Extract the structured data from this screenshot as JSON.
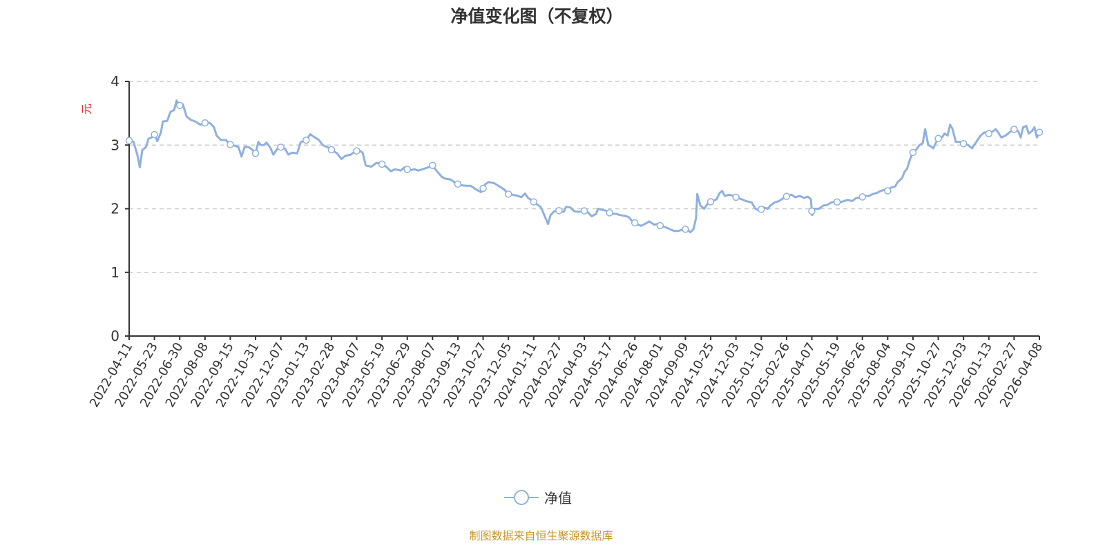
{
  "chart_data": {
    "type": "line",
    "title": "净值变化图（不复权）",
    "ylabel": "元",
    "xlabel": "",
    "ylim": [
      0,
      4
    ],
    "yticks": [
      0,
      1,
      2,
      3,
      4
    ],
    "grid": true,
    "legend_placement": "bottom-center",
    "x_unit": "days since 2022-04-11",
    "x_range_days": [
      0,
      1458
    ],
    "xtick_labels": [
      "2022-04-11",
      "2022-05-23",
      "2022-06-30",
      "2022-08-08",
      "2022-09-15",
      "2022-10-31",
      "2022-12-07",
      "2023-01-13",
      "2023-02-28",
      "2023-04-07",
      "2023-05-19",
      "2023-06-29",
      "2023-08-07",
      "2023-09-13",
      "2023-10-27",
      "2023-12-05",
      "2024-01-11",
      "2024-02-27",
      "2024-04-03",
      "2024-05-17",
      "2024-06-26",
      "2024-08-01",
      "2024-09-09",
      "2024-10-25",
      "2024-12-03",
      "2025-01-10",
      "2025-02-26",
      "2025-04-07",
      "2025-05-19",
      "2025-06-26",
      "2025-08-04",
      "2025-09-10",
      "2025-10-27",
      "2025-12-03",
      "2026-01-13",
      "2026-02-27",
      "2026-04-08"
    ],
    "series": [
      {
        "name": "净值",
        "color": "#8eb0de",
        "points": [
          [
            0,
            3.07
          ],
          [
            7,
            3.05
          ],
          [
            13,
            2.85
          ],
          [
            17,
            2.65
          ],
          [
            21,
            2.92
          ],
          [
            27,
            2.97
          ],
          [
            31,
            3.1
          ],
          [
            36,
            3.12
          ],
          [
            41,
            3.17
          ],
          [
            45,
            3.06
          ],
          [
            51,
            3.2
          ],
          [
            54,
            3.37
          ],
          [
            61,
            3.38
          ],
          [
            66,
            3.52
          ],
          [
            72,
            3.55
          ],
          [
            76,
            3.7
          ],
          [
            80,
            3.62
          ],
          [
            86,
            3.64
          ],
          [
            92,
            3.45
          ],
          [
            98,
            3.4
          ],
          [
            106,
            3.37
          ],
          [
            114,
            3.32
          ],
          [
            122,
            3.35
          ],
          [
            129,
            3.35
          ],
          [
            136,
            3.28
          ],
          [
            140,
            3.15
          ],
          [
            147,
            3.08
          ],
          [
            155,
            3.08
          ],
          [
            161,
            3.01
          ],
          [
            169,
            2.99
          ],
          [
            175,
            2.97
          ],
          [
            180,
            2.82
          ],
          [
            185,
            2.97
          ],
          [
            191,
            2.97
          ],
          [
            198,
            2.92
          ],
          [
            202,
            2.85
          ],
          [
            207,
            3.05
          ],
          [
            211,
            3.0
          ],
          [
            216,
            3.0
          ],
          [
            220,
            3.04
          ],
          [
            226,
            2.96
          ],
          [
            231,
            2.85
          ],
          [
            238,
            2.95
          ],
          [
            244,
            2.97
          ],
          [
            250,
            2.94
          ],
          [
            255,
            2.85
          ],
          [
            261,
            2.88
          ],
          [
            269,
            2.87
          ],
          [
            275,
            3.05
          ],
          [
            283,
            3.07
          ],
          [
            290,
            3.17
          ],
          [
            296,
            3.13
          ],
          [
            304,
            3.08
          ],
          [
            310,
            3.0
          ],
          [
            319,
            2.96
          ],
          [
            325,
            2.92
          ],
          [
            333,
            2.87
          ],
          [
            340,
            2.78
          ],
          [
            346,
            2.83
          ],
          [
            355,
            2.85
          ],
          [
            362,
            2.9
          ],
          [
            368,
            2.92
          ],
          [
            374,
            2.88
          ],
          [
            379,
            2.68
          ],
          [
            388,
            2.66
          ],
          [
            396,
            2.72
          ],
          [
            405,
            2.7
          ],
          [
            413,
            2.65
          ],
          [
            419,
            2.59
          ],
          [
            426,
            2.62
          ],
          [
            435,
            2.6
          ],
          [
            441,
            2.65
          ],
          [
            448,
            2.6
          ],
          [
            457,
            2.62
          ],
          [
            463,
            2.6
          ],
          [
            470,
            2.62
          ],
          [
            479,
            2.65
          ],
          [
            486,
            2.68
          ],
          [
            492,
            2.6
          ],
          [
            501,
            2.5
          ],
          [
            507,
            2.47
          ],
          [
            515,
            2.46
          ],
          [
            523,
            2.4
          ],
          [
            531,
            2.37
          ],
          [
            540,
            2.36
          ],
          [
            547,
            2.36
          ],
          [
            556,
            2.3
          ],
          [
            564,
            2.26
          ],
          [
            570,
            2.38
          ],
          [
            576,
            2.42
          ],
          [
            585,
            2.4
          ],
          [
            593,
            2.35
          ],
          [
            601,
            2.3
          ],
          [
            607,
            2.23
          ],
          [
            614,
            2.22
          ],
          [
            623,
            2.2
          ],
          [
            628,
            2.18
          ],
          [
            634,
            2.24
          ],
          [
            639,
            2.17
          ],
          [
            645,
            2.13
          ],
          [
            653,
            2.07
          ],
          [
            659,
            2.03
          ],
          [
            662,
            1.97
          ],
          [
            667,
            1.85
          ],
          [
            671,
            1.76
          ],
          [
            675,
            1.9
          ],
          [
            681,
            1.96
          ],
          [
            689,
            1.97
          ],
          [
            696,
            1.95
          ],
          [
            700,
            2.03
          ],
          [
            707,
            2.02
          ],
          [
            713,
            1.96
          ],
          [
            720,
            1.95
          ],
          [
            728,
            1.97
          ],
          [
            734,
            1.95
          ],
          [
            741,
            1.88
          ],
          [
            748,
            1.92
          ],
          [
            751,
            2.0
          ],
          [
            758,
            1.98
          ],
          [
            764,
            1.97
          ],
          [
            772,
            1.92
          ],
          [
            780,
            1.92
          ],
          [
            786,
            1.9
          ],
          [
            793,
            1.89
          ],
          [
            800,
            1.87
          ],
          [
            806,
            1.8
          ],
          [
            813,
            1.76
          ],
          [
            820,
            1.73
          ],
          [
            826,
            1.76
          ],
          [
            833,
            1.8
          ],
          [
            841,
            1.75
          ],
          [
            846,
            1.76
          ],
          [
            853,
            1.72
          ],
          [
            859,
            1.71
          ],
          [
            866,
            1.68
          ],
          [
            873,
            1.65
          ],
          [
            879,
            1.65
          ],
          [
            886,
            1.67
          ],
          [
            893,
            1.68
          ],
          [
            899,
            1.63
          ],
          [
            904,
            1.68
          ],
          [
            908,
            1.85
          ],
          [
            910,
            2.23
          ],
          [
            915,
            2.05
          ],
          [
            921,
            2.0
          ],
          [
            928,
            2.1
          ],
          [
            935,
            2.12
          ],
          [
            941,
            2.15
          ],
          [
            946,
            2.25
          ],
          [
            950,
            2.28
          ],
          [
            954,
            2.2
          ],
          [
            961,
            2.22
          ],
          [
            968,
            2.2
          ],
          [
            974,
            2.17
          ],
          [
            981,
            2.15
          ],
          [
            988,
            2.12
          ],
          [
            997,
            2.1
          ],
          [
            1003,
            2.0
          ],
          [
            1010,
            1.97
          ],
          [
            1016,
            2.02
          ],
          [
            1023,
            2.0
          ],
          [
            1027,
            2.05
          ],
          [
            1034,
            2.1
          ],
          [
            1041,
            2.12
          ],
          [
            1047,
            2.16
          ],
          [
            1054,
            2.2
          ],
          [
            1061,
            2.22
          ],
          [
            1067,
            2.18
          ],
          [
            1074,
            2.2
          ],
          [
            1081,
            2.17
          ],
          [
            1087,
            2.19
          ],
          [
            1092,
            2.15
          ],
          [
            1094,
            1.9
          ],
          [
            1098,
            2.0
          ],
          [
            1105,
            2.0
          ],
          [
            1112,
            2.05
          ],
          [
            1118,
            2.06
          ],
          [
            1125,
            2.1
          ],
          [
            1131,
            2.11
          ],
          [
            1138,
            2.1
          ],
          [
            1145,
            2.12
          ],
          [
            1151,
            2.14
          ],
          [
            1158,
            2.12
          ],
          [
            1165,
            2.17
          ],
          [
            1171,
            2.17
          ],
          [
            1178,
            2.2
          ],
          [
            1185,
            2.2
          ],
          [
            1191,
            2.23
          ],
          [
            1198,
            2.25
          ],
          [
            1204,
            2.28
          ],
          [
            1211,
            2.3
          ],
          [
            1215,
            2.28
          ],
          [
            1220,
            2.33
          ],
          [
            1227,
            2.35
          ],
          [
            1231,
            2.42
          ],
          [
            1238,
            2.48
          ],
          [
            1242,
            2.58
          ],
          [
            1246,
            2.63
          ],
          [
            1251,
            2.78
          ],
          [
            1255,
            2.88
          ],
          [
            1260,
            2.92
          ],
          [
            1266,
            3.0
          ],
          [
            1271,
            3.03
          ],
          [
            1275,
            3.25
          ],
          [
            1280,
            3.0
          ],
          [
            1284,
            2.98
          ],
          [
            1288,
            2.95
          ],
          [
            1293,
            3.05
          ],
          [
            1297,
            3.12
          ],
          [
            1302,
            3.12
          ],
          [
            1306,
            3.18
          ],
          [
            1311,
            3.15
          ],
          [
            1315,
            3.32
          ],
          [
            1319,
            3.25
          ],
          [
            1324,
            3.05
          ],
          [
            1330,
            3.05
          ],
          [
            1337,
            3.02
          ],
          [
            1344,
            3.0
          ],
          [
            1350,
            2.95
          ],
          [
            1357,
            3.05
          ],
          [
            1364,
            3.15
          ],
          [
            1370,
            3.2
          ],
          [
            1377,
            3.18
          ],
          [
            1384,
            3.22
          ],
          [
            1388,
            3.25
          ],
          [
            1392,
            3.2
          ],
          [
            1397,
            3.12
          ],
          [
            1404,
            3.15
          ],
          [
            1410,
            3.2
          ],
          [
            1417,
            3.25
          ],
          [
            1424,
            3.22
          ],
          [
            1428,
            3.12
          ],
          [
            1432,
            3.28
          ],
          [
            1437,
            3.3
          ],
          [
            1441,
            3.18
          ],
          [
            1446,
            3.22
          ],
          [
            1450,
            3.28
          ],
          [
            1454,
            3.12
          ],
          [
            1458,
            3.2
          ]
        ]
      }
    ]
  },
  "legend": {
    "label": "净值"
  },
  "footer": "制图数据来自恒生聚源数据库"
}
